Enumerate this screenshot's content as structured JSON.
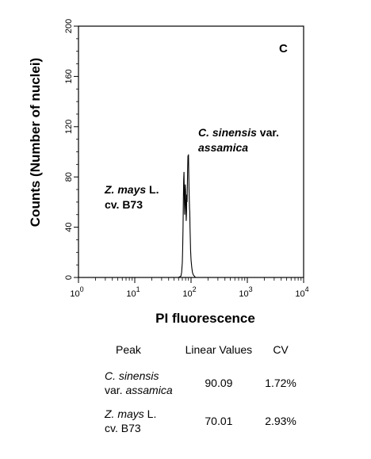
{
  "chart_data": {
    "type": "line",
    "panel_label": "C",
    "xlabel": "PI fluorescence",
    "ylabel": "Counts (Number of nuclei)",
    "xscale": "log",
    "xlim": [
      1,
      10000
    ],
    "ylim": [
      0,
      200
    ],
    "x_ticks": [
      {
        "base": "10",
        "exp": "0"
      },
      {
        "base": "10",
        "exp": "1"
      },
      {
        "base": "10",
        "exp": "2"
      },
      {
        "base": "10",
        "exp": "3"
      },
      {
        "base": "10",
        "exp": "4"
      }
    ],
    "y_ticks": [
      "0",
      "40",
      "80",
      "120",
      "160",
      "200"
    ],
    "grid": false,
    "series": [
      {
        "x": [
          50,
          60,
          66,
          68,
          70,
          71,
          72,
          73,
          74,
          75,
          76,
          77,
          78,
          79,
          80,
          81,
          82,
          83,
          84,
          85,
          86,
          87,
          88,
          89,
          90,
          91,
          92,
          93,
          94,
          95,
          96,
          97,
          98,
          100,
          103,
          106,
          110,
          120,
          140
        ],
        "y": [
          0,
          0,
          1,
          4,
          12,
          22,
          40,
          62,
          78,
          84,
          66,
          50,
          58,
          74,
          70,
          55,
          45,
          52,
          66,
          60,
          70,
          86,
          97,
          90,
          98,
          84,
          72,
          62,
          55,
          52,
          40,
          30,
          22,
          14,
          8,
          4,
          2,
          0,
          0
        ]
      }
    ],
    "annotations": [
      {
        "lines": [
          [
            {
              "text": "C. sinensis",
              "italic": true
            },
            {
              "text": " var.",
              "italic": false
            }
          ],
          [
            {
              "text": "assamica",
              "italic": true
            }
          ]
        ]
      },
      {
        "lines": [
          [
            {
              "text": "Z. mays",
              "italic": true
            },
            {
              "text": " L.",
              "italic": false
            }
          ],
          [
            {
              "text": "cv. B73",
              "italic": false
            }
          ]
        ]
      }
    ]
  },
  "table": {
    "headers": {
      "peak": "Peak",
      "linear": "Linear Values",
      "cv": "CV"
    },
    "rows": [
      {
        "name_line1_italic": "C. sinensis",
        "name_line1_rest": "",
        "name_line2_plain": "var. ",
        "name_line2_italic": "assamica",
        "linear": "90.09",
        "cv": "1.72%"
      },
      {
        "name_line1_italic": "Z. mays",
        "name_line1_rest": " L.",
        "name_line2_plain": "cv. B73",
        "name_line2_italic": "",
        "linear": "70.01",
        "cv": "2.93%"
      }
    ]
  }
}
